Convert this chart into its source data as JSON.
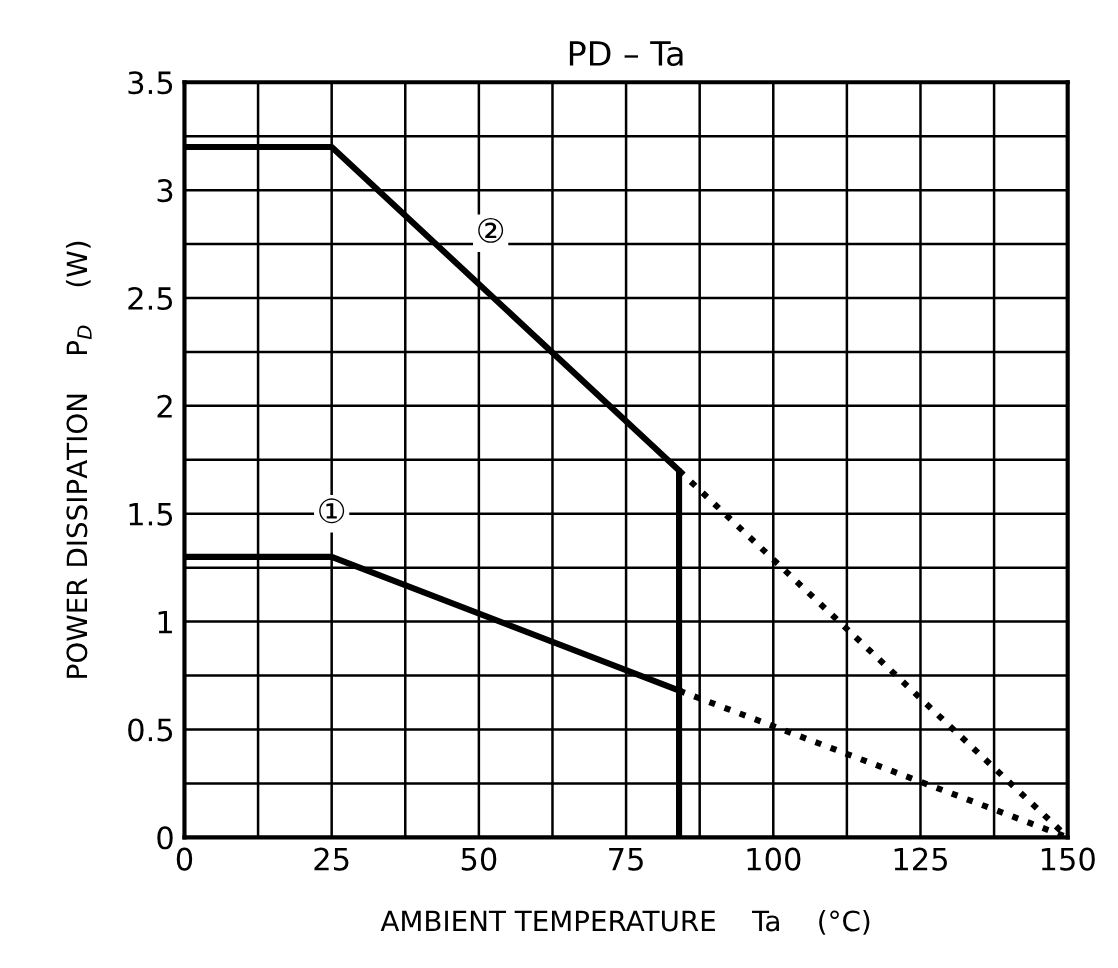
{
  "chart_data": {
    "type": "line",
    "title": "PD – Ta",
    "xlabel": "AMBIENT TEMPERATURE    Ta    (°C)",
    "ylabel": "POWER DISSIPATION    P$_{D}$    (W)",
    "series": [
      {
        "color": "#000000",
        "x": [
          0,
          25,
          84,
          84
        ],
        "values": [
          3.2,
          3.2,
          1.7,
          0
        ]
      },
      {
        "color": "#000000",
        "x": [
          84,
          150
        ],
        "values": [
          1.7,
          0
        ],
        "line_style": "dotted"
      },
      {
        "color": "#000000",
        "x": [
          0,
          25,
          84
        ],
        "values": [
          1.3,
          1.3,
          0.68
        ]
      },
      {
        "color": "#000000",
        "x": [
          84,
          150
        ],
        "values": [
          0.68,
          0
        ],
        "line_style": "dotted"
      }
    ],
    "annotations": [
      {
        "text": "②",
        "x": 52,
        "y": 2.8
      },
      {
        "text": "①",
        "x": 25,
        "y": 1.5
      }
    ],
    "xlim": [
      0,
      150
    ],
    "ylim": [
      0,
      3.5
    ],
    "xticks": [
      0,
      {
        "value": 12.5,
        "label": null
      },
      25,
      {
        "value": 37.5,
        "label": null
      },
      50,
      {
        "value": 62.5,
        "label": null
      },
      75,
      {
        "value": 87.5,
        "label": null
      },
      100,
      {
        "value": 112.5,
        "label": null
      },
      125,
      {
        "value": 137.5,
        "label": null
      },
      150
    ],
    "yticks": [
      0,
      {
        "value": 0.25,
        "label": null
      },
      0.5,
      {
        "value": 0.75,
        "label": null
      },
      1,
      {
        "value": 1.25,
        "label": null
      },
      1.5,
      {
        "value": 1.75,
        "label": null
      },
      2,
      {
        "value": 2.25,
        "label": null
      },
      2.5,
      {
        "value": 2.75,
        "label": null
      },
      3,
      {
        "value": 3.25,
        "label": null
      },
      3.5
    ],
    "grid": true,
    "line_style": "solid"
  }
}
